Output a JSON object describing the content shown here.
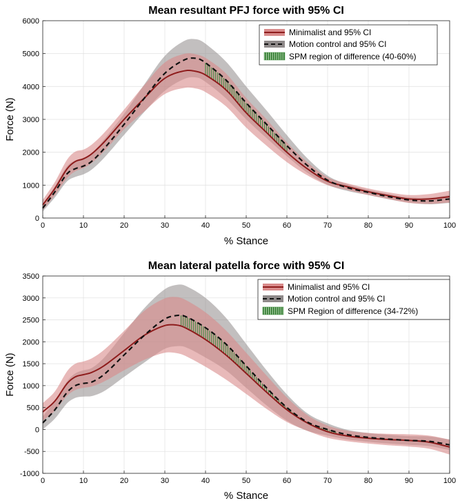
{
  "colors": {
    "minimalist_line": "#8e1c1c",
    "minimalist_band": "#d88a8a",
    "motion_line": "#111111",
    "motion_band": "#8f8a8a",
    "spm_fill": "#3d8a3d",
    "grid": "#e3e3e3"
  },
  "chart_data": [
    {
      "type": "line",
      "title": "Mean resultant PFJ force with 95% CI",
      "xlabel": "% Stance",
      "ylabel": "Force (N)",
      "xlim": [
        0,
        100
      ],
      "ylim": [
        0,
        6000
      ],
      "xticks": [
        0,
        10,
        20,
        30,
        40,
        50,
        60,
        70,
        80,
        90,
        100
      ],
      "yticks": [
        0,
        1000,
        2000,
        3000,
        4000,
        5000,
        6000
      ],
      "grid": true,
      "legend_position": "top-right",
      "x": [
        0,
        3,
        6,
        8,
        10,
        12,
        15,
        20,
        25,
        30,
        35,
        38,
        40,
        45,
        50,
        55,
        60,
        65,
        70,
        75,
        80,
        85,
        90,
        95,
        100
      ],
      "series": [
        {
          "name": "Minimalist and 95% CI",
          "style": "solid",
          "values": [
            400,
            900,
            1500,
            1720,
            1800,
            1950,
            2300,
            3000,
            3650,
            4250,
            4480,
            4450,
            4350,
            3900,
            3200,
            2600,
            2000,
            1500,
            1120,
            950,
            800,
            680,
            580,
            580,
            650
          ],
          "ci_half_width": [
            150,
            200,
            280,
            300,
            280,
            280,
            280,
            300,
            400,
            480,
            520,
            520,
            520,
            500,
            450,
            400,
            300,
            200,
            120,
            100,
            100,
            100,
            120,
            150,
            180
          ]
        },
        {
          "name": "Motion control and 95% CI",
          "style": "dashed",
          "values": [
            300,
            800,
            1350,
            1500,
            1580,
            1720,
            2100,
            2850,
            3650,
            4400,
            4820,
            4850,
            4720,
            4200,
            3500,
            2850,
            2200,
            1600,
            1150,
            920,
            780,
            650,
            550,
            520,
            580
          ],
          "ci_half_width": [
            100,
            170,
            230,
            250,
            250,
            250,
            280,
            320,
            420,
            530,
            580,
            580,
            580,
            560,
            500,
            420,
            320,
            220,
            140,
            100,
            80,
            80,
            80,
            100,
            120
          ]
        }
      ],
      "spm_region": {
        "label": "SPM region of difference (40-60%)",
        "x_start": 40,
        "x_end": 60
      }
    },
    {
      "type": "line",
      "title": "Mean lateral patella force with 95% CI",
      "xlabel": "% Stance",
      "ylabel": "Force (N)",
      "xlim": [
        0,
        100
      ],
      "ylim": [
        -1000,
        3500
      ],
      "xticks": [
        0,
        10,
        20,
        30,
        40,
        50,
        60,
        70,
        80,
        90,
        100
      ],
      "yticks": [
        -1000,
        -500,
        0,
        500,
        1000,
        1500,
        2000,
        2500,
        3000,
        3500
      ],
      "grid": true,
      "legend_position": "top-right",
      "x": [
        0,
        3,
        6,
        8,
        10,
        12,
        15,
        20,
        25,
        30,
        33,
        35,
        40,
        45,
        50,
        55,
        60,
        65,
        70,
        75,
        80,
        85,
        90,
        95,
        100
      ],
      "series": [
        {
          "name": "Minimalist and 95% CI",
          "style": "solid",
          "values": [
            400,
            650,
            1050,
            1200,
            1250,
            1300,
            1450,
            1800,
            2150,
            2370,
            2380,
            2320,
            2050,
            1700,
            1280,
            850,
            450,
            150,
            -50,
            -150,
            -200,
            -230,
            -250,
            -290,
            -400
          ],
          "ci_half_width": [
            200,
            220,
            280,
            300,
            300,
            320,
            360,
            450,
            560,
            620,
            640,
            640,
            620,
            560,
            470,
            380,
            280,
            180,
            140,
            120,
            120,
            130,
            140,
            150,
            170
          ]
        },
        {
          "name": "Motion control and 95% CI",
          "style": "dashed",
          "values": [
            150,
            450,
            850,
            1000,
            1050,
            1080,
            1250,
            1700,
            2150,
            2520,
            2600,
            2580,
            2320,
            1950,
            1450,
            950,
            500,
            170,
            0,
            -120,
            -180,
            -220,
            -250,
            -270,
            -350
          ],
          "ci_half_width": [
            150,
            200,
            250,
            280,
            300,
            320,
            380,
            500,
            620,
            680,
            700,
            700,
            680,
            600,
            500,
            400,
            300,
            200,
            140,
            110,
            100,
            100,
            100,
            110,
            120
          ]
        }
      ],
      "spm_region": {
        "label": "SPM Region of difference (34-72%)",
        "x_start": 34,
        "x_end": 72
      }
    }
  ]
}
